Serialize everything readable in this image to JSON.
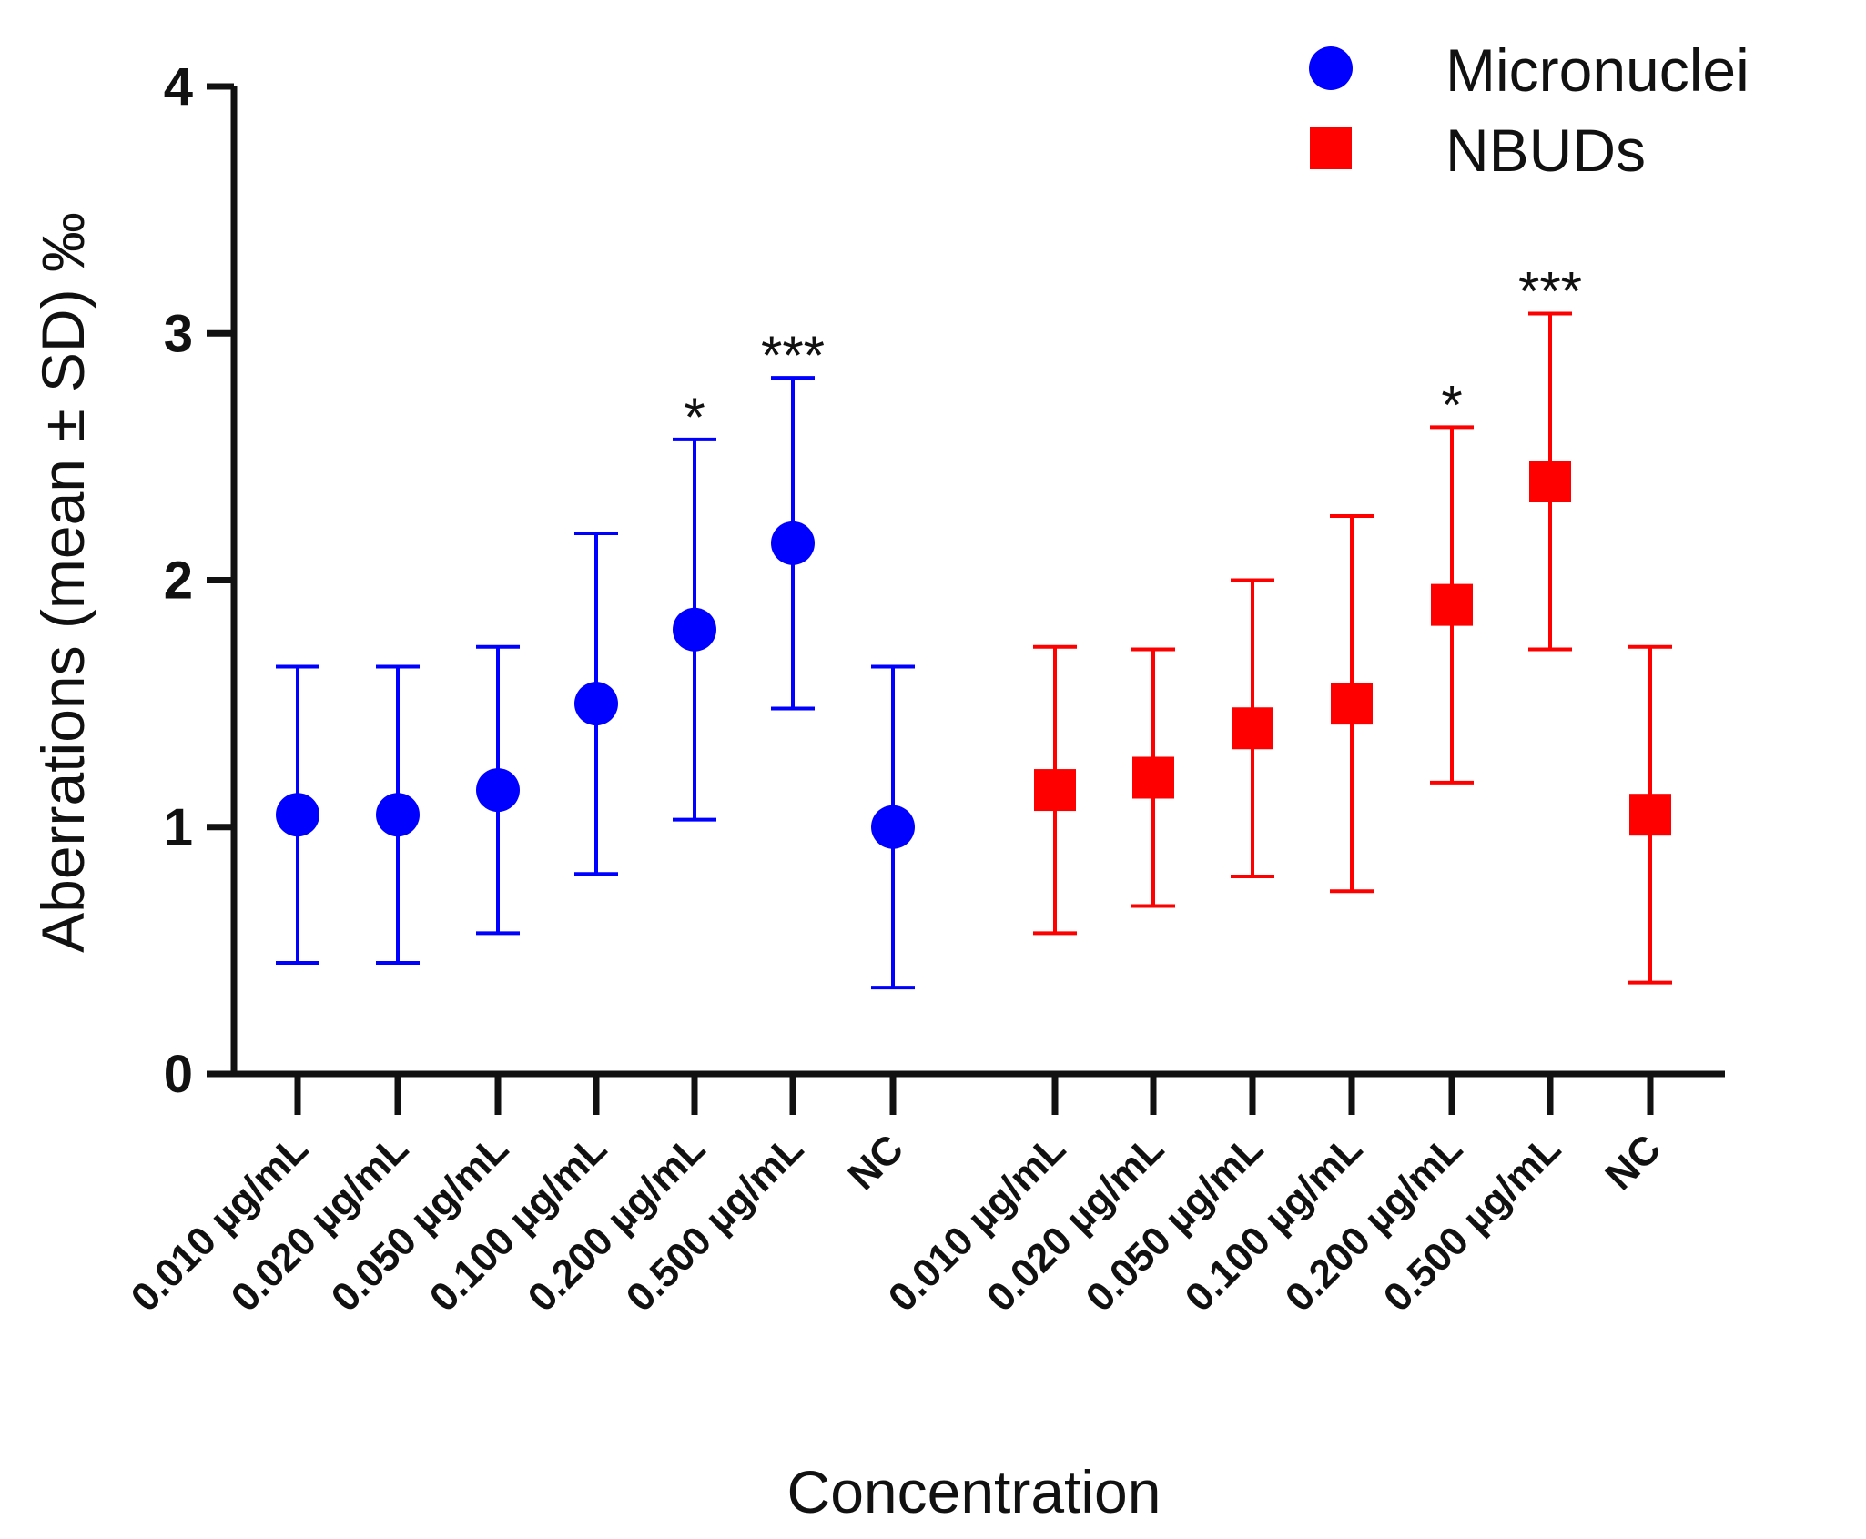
{
  "chart_data": {
    "type": "scatter",
    "ylabel": "Aberrations (mean ± SD) ‰",
    "xlabel": "Concentration",
    "ylim": [
      0,
      4
    ],
    "yticks": [
      0,
      1,
      2,
      3,
      4
    ],
    "legend_position": "top-right",
    "series": [
      {
        "name": "Micronuclei",
        "color": "#0000ff",
        "marker": "circle",
        "points": [
          {
            "label": "0.010 µg/mL",
            "mean": 1.05,
            "sd": 0.6,
            "sig": ""
          },
          {
            "label": "0.020 µg/mL",
            "mean": 1.05,
            "sd": 0.6,
            "sig": ""
          },
          {
            "label": "0.050 µg/mL",
            "mean": 1.15,
            "sd": 0.58,
            "sig": ""
          },
          {
            "label": "0.100 µg/mL",
            "mean": 1.5,
            "sd": 0.69,
            "sig": ""
          },
          {
            "label": "0.200 µg/mL",
            "mean": 1.8,
            "sd": 0.77,
            "sig": "*"
          },
          {
            "label": "0.500 µg/mL",
            "mean": 2.15,
            "sd": 0.67,
            "sig": "***"
          },
          {
            "label": "NC",
            "mean": 1.0,
            "sd": 0.65,
            "sig": ""
          }
        ]
      },
      {
        "name": "NBUDs",
        "color": "#ff0000",
        "marker": "square",
        "points": [
          {
            "label": "0.010 µg/mL",
            "mean": 1.15,
            "sd": 0.58,
            "sig": ""
          },
          {
            "label": "0.020 µg/mL",
            "mean": 1.2,
            "sd": 0.52,
            "sig": ""
          },
          {
            "label": "0.050 µg/mL",
            "mean": 1.4,
            "sd": 0.6,
            "sig": ""
          },
          {
            "label": "0.100 µg/mL",
            "mean": 1.5,
            "sd": 0.76,
            "sig": ""
          },
          {
            "label": "0.200 µg/mL",
            "mean": 1.9,
            "sd": 0.72,
            "sig": "*"
          },
          {
            "label": "0.500 µg/mL",
            "mean": 2.4,
            "sd": 0.68,
            "sig": "***"
          },
          {
            "label": "NC",
            "mean": 1.05,
            "sd": 0.68,
            "sig": ""
          }
        ]
      }
    ]
  }
}
